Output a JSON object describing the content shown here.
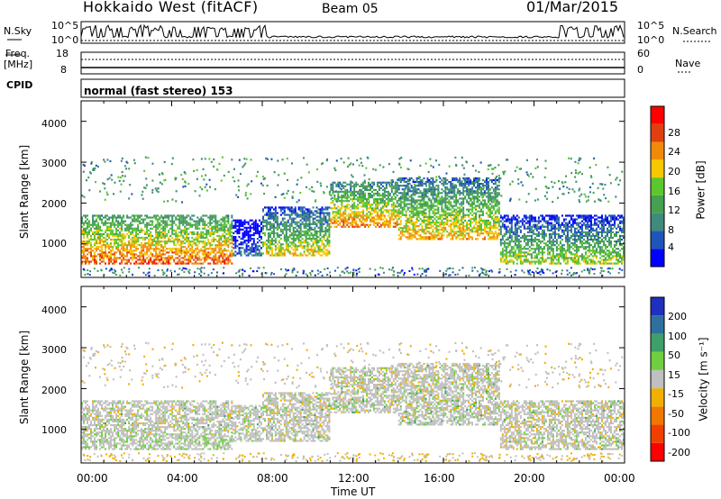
{
  "header": {
    "title": "Hokkaido West (fitACF)",
    "beam": "Beam 05",
    "date": "01/Mar/2015"
  },
  "noise_panel": {
    "left_label": "N.Sky",
    "right_label": "N.Search",
    "left_ticks": [
      "10^5",
      "10^0"
    ],
    "right_ticks": [
      "10^5",
      "10^0"
    ]
  },
  "freq_panel": {
    "left_label_1": "Freq.",
    "left_label_2": "[MHz]",
    "left_ticks": [
      "18",
      "8"
    ],
    "right_label": "Nave",
    "right_ticks": [
      "60",
      "0"
    ]
  },
  "cpid_panel": {
    "label": "CPID",
    "text": "normal (fast stereo) 153"
  },
  "power_panel": {
    "ylabel": "Slant Range [km]",
    "yticks": [
      "1000",
      "2000",
      "3000",
      "4000"
    ],
    "colorbar_label": "Power [dB]",
    "colorbar_ticks": [
      "4",
      "8",
      "12",
      "16",
      "20",
      "24",
      "28"
    ],
    "colors": [
      "#0000ff",
      "#1f55b8",
      "#3f8a7d",
      "#46a050",
      "#5bc72e",
      "#f5c800",
      "#f08a0a",
      "#e04010",
      "#ff0000"
    ]
  },
  "velocity_panel": {
    "ylabel": "Slant Range [km]",
    "yticks": [
      "1000",
      "2000",
      "3000",
      "4000"
    ],
    "colorbar_label": "Velocity [m s⁻¹]",
    "colorbar_ticks": [
      "200",
      "100",
      "50",
      "15",
      "-15",
      "-50",
      "-100",
      "-200"
    ],
    "colors": [
      "#1f2fbf",
      "#2f6fa0",
      "#3f9f6a",
      "#6fcf3f",
      "#c0c0c0",
      "#f0b000",
      "#f07800",
      "#f04000",
      "#ff0000"
    ]
  },
  "xaxis": {
    "label": "Time UT",
    "ticks": [
      "00:00",
      "04:00",
      "08:00",
      "12:00",
      "16:00",
      "20:00",
      "00:00"
    ]
  },
  "chart_data": {
    "type": "heatmap",
    "x_unit": "hours UT",
    "x_range": [
      0,
      24
    ],
    "y_range_km": [
      180,
      4500
    ],
    "power_scale_db": [
      0,
      32
    ],
    "velocity_scale_ms": [
      -250,
      250
    ],
    "scatter_regions": [
      {
        "start_h": 0.0,
        "end_h": 6.7,
        "range_lo_km": 500,
        "range_hi_km": 1700,
        "power_db": 26
      },
      {
        "start_h": 6.7,
        "end_h": 8.0,
        "range_lo_km": 700,
        "range_hi_km": 1600,
        "power_db": 8
      },
      {
        "start_h": 8.0,
        "end_h": 11.0,
        "range_lo_km": 700,
        "range_hi_km": 1900,
        "power_db": 20
      },
      {
        "start_h": 11.0,
        "end_h": 14.0,
        "range_lo_km": 1400,
        "range_hi_km": 2500,
        "power_db": 24
      },
      {
        "start_h": 14.0,
        "end_h": 18.5,
        "range_lo_km": 1100,
        "range_hi_km": 2600,
        "power_db": 22
      },
      {
        "start_h": 18.5,
        "end_h": 24.0,
        "range_lo_km": 500,
        "range_hi_km": 1700,
        "power_db": 18
      }
    ]
  }
}
